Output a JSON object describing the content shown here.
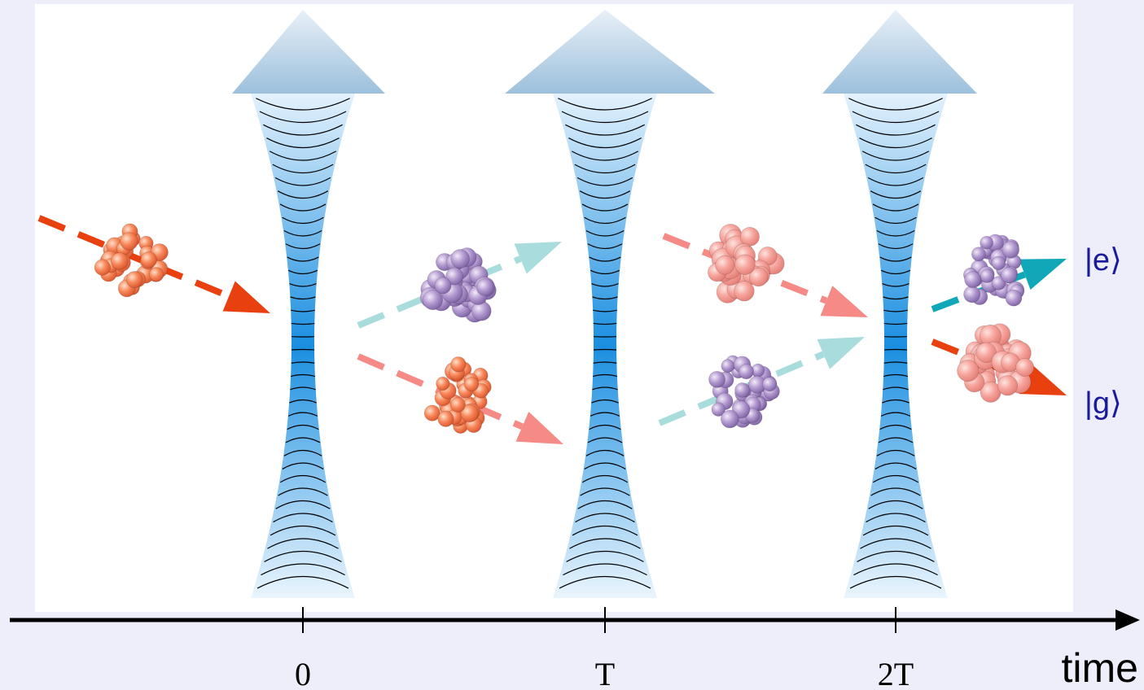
{
  "states": {
    "excited": "|e⟩",
    "ground": "|g⟩"
  },
  "axis": {
    "ticks": [
      "0",
      "T",
      "2T"
    ],
    "label": "time"
  }
}
